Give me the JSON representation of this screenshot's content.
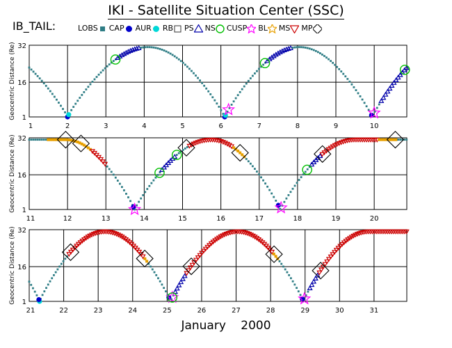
{
  "title": "IKI - Satellite Situation Center (SSC)",
  "set_name": "IB_TAIL:",
  "legend": [
    {
      "label": "LOBS",
      "symbol": "square",
      "color": "#2e7d85"
    },
    {
      "label": "CAP",
      "symbol": "dot",
      "color": "#0000cc"
    },
    {
      "label": "AUR",
      "symbol": "dot",
      "color": "#00d8d8"
    },
    {
      "label": "RB",
      "symbol": "square-open",
      "color": "#333333"
    },
    {
      "label": "PS",
      "symbol": "triangle-up",
      "color": "#0000aa"
    },
    {
      "label": "NS",
      "symbol": "circle",
      "color": "#00c000"
    },
    {
      "label": "CUSP",
      "symbol": "star",
      "color": "#ff00ff"
    },
    {
      "label": "BL",
      "symbol": "star",
      "color": "#e8a000"
    },
    {
      "label": "MS",
      "symbol": "triangle-down",
      "color": "#cc0000"
    },
    {
      "label": "MP",
      "symbol": "diamond",
      "color": "#000000"
    }
  ],
  "bottom_label": {
    "month": "January",
    "year": "2000"
  },
  "chart_data": [
    {
      "type": "scatter",
      "ylabel": "Geocentric Distance (Re)",
      "ylim": [
        1,
        32
      ],
      "yticks": [
        1,
        16,
        32
      ],
      "xlim": [
        1,
        10.85
      ],
      "xticks": [
        1,
        2,
        3,
        4,
        5,
        6,
        7,
        8,
        9,
        10
      ],
      "orbit": {
        "perigee_days": [
          2.0,
          6.1,
          9.95
        ],
        "apogee_days": [
          4.1,
          8.05
        ],
        "rmax": 31.2
      },
      "segments": [
        {
          "region": "PS",
          "from": 3.3,
          "to": 3.9
        },
        {
          "region": "PS",
          "from": 7.2,
          "to": 7.85
        },
        {
          "region": "PS",
          "from": 10.15,
          "to": 10.85
        }
      ],
      "markers": [
        {
          "region": "CAP",
          "day": 2.0
        },
        {
          "region": "AUR",
          "day": 2.03
        },
        {
          "region": "CAP",
          "day": 6.1
        },
        {
          "region": "AUR",
          "day": 6.12
        },
        {
          "region": "CUSP",
          "day": 6.2
        },
        {
          "region": "CAP",
          "day": 9.93
        },
        {
          "region": "CUSP",
          "day": 10.0
        },
        {
          "region": "NS",
          "day": 3.25
        },
        {
          "region": "NS",
          "day": 7.15
        },
        {
          "region": "NS",
          "day": 10.8
        }
      ]
    },
    {
      "type": "scatter",
      "ylabel": "Geocentric Distance (Re)",
      "ylim": [
        1,
        32
      ],
      "yticks": [
        1,
        16,
        32
      ],
      "xlim": [
        11,
        20.85
      ],
      "xticks": [
        11,
        12,
        13,
        14,
        15,
        16,
        17,
        18,
        19,
        20
      ],
      "orbit": {
        "perigee_days": [
          13.75,
          17.55
        ],
        "apogee_days": [
          11.95,
          15.75,
          19.5
        ],
        "rmax": 31.2
      },
      "segments": [
        {
          "region": "BL",
          "from": 11.45,
          "to": 12.6
        },
        {
          "region": "MS",
          "from": 12.6,
          "to": 13.0
        },
        {
          "region": "PS",
          "from": 14.45,
          "to": 14.8
        },
        {
          "region": "MS",
          "from": 15.15,
          "to": 16.3
        },
        {
          "region": "BL",
          "from": 16.3,
          "to": 16.65
        },
        {
          "region": "PS",
          "from": 18.35,
          "to": 18.6
        },
        {
          "region": "MS",
          "from": 18.6,
          "to": 20.1
        },
        {
          "region": "BL",
          "from": 20.1,
          "to": 20.6
        }
      ],
      "markers": [
        {
          "region": "CAP",
          "day": 13.72
        },
        {
          "region": "CUSP",
          "day": 13.75
        },
        {
          "region": "CAP",
          "day": 17.5
        },
        {
          "region": "CUSP",
          "day": 17.57
        },
        {
          "region": "MP",
          "day": 11.95
        },
        {
          "region": "MP",
          "day": 12.35
        },
        {
          "region": "MP",
          "day": 15.1
        },
        {
          "region": "MP",
          "day": 16.5
        },
        {
          "region": "MP",
          "day": 18.65
        },
        {
          "region": "MP",
          "day": 20.55
        },
        {
          "region": "NS",
          "day": 14.4
        },
        {
          "region": "NS",
          "day": 14.85
        },
        {
          "region": "NS",
          "day": 18.25
        }
      ]
    },
    {
      "type": "scatter",
      "ylabel": "Geocentric Distance (Re)",
      "ylim": [
        1,
        32
      ],
      "yticks": [
        1,
        16,
        32
      ],
      "xlim": [
        21,
        31.95
      ],
      "xticks": [
        21,
        22,
        23,
        24,
        25,
        26,
        27,
        28,
        29,
        30,
        31
      ],
      "orbit": {
        "perigee_days": [
          21.3,
          25.1,
          28.95
        ],
        "apogee_days": [
          23.2,
          27.05,
          30.85
        ],
        "rmax": 31.2
      },
      "segments": [
        {
          "region": "MS",
          "from": 22.15,
          "to": 24.3
        },
        {
          "region": "BL",
          "from": 24.3,
          "to": 24.45
        },
        {
          "region": "PS",
          "from": 25.2,
          "to": 25.55
        },
        {
          "region": "MS",
          "from": 25.55,
          "to": 28.05
        },
        {
          "region": "BL",
          "from": 28.05,
          "to": 28.25
        },
        {
          "region": "PS",
          "from": 29.1,
          "to": 29.4
        },
        {
          "region": "MS",
          "from": 29.4,
          "to": 31.95
        }
      ],
      "markers": [
        {
          "region": "AUR",
          "day": 21.3
        },
        {
          "region": "CAP",
          "day": 21.28
        },
        {
          "region": "CAP",
          "day": 25.05
        },
        {
          "region": "CUSP",
          "day": 25.15
        },
        {
          "region": "CAP",
          "day": 28.92
        },
        {
          "region": "CUSP",
          "day": 28.98
        },
        {
          "region": "MP",
          "day": 22.2
        },
        {
          "region": "MP",
          "day": 24.35
        },
        {
          "region": "MP",
          "day": 25.7
        },
        {
          "region": "MP",
          "day": 28.1
        },
        {
          "region": "MP",
          "day": 29.45
        },
        {
          "region": "NS",
          "day": 25.15
        }
      ]
    }
  ]
}
